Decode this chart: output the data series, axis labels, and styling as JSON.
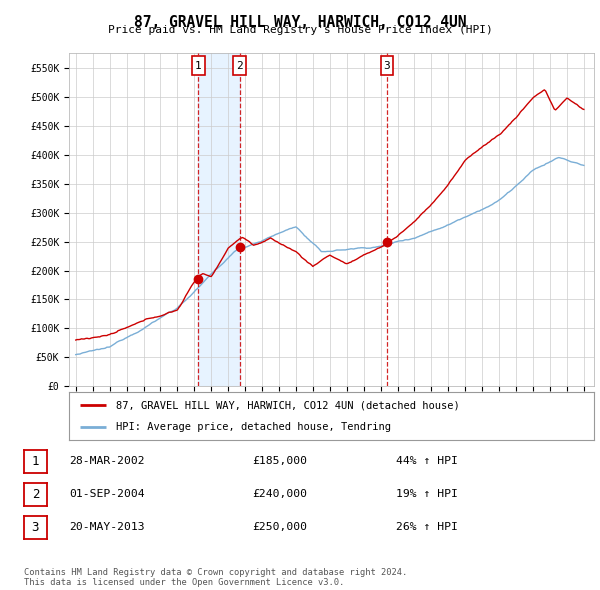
{
  "title": "87, GRAVEL HILL WAY, HARWICH, CO12 4UN",
  "subtitle": "Price paid vs. HM Land Registry's House Price Index (HPI)",
  "legend_line1": "87, GRAVEL HILL WAY, HARWICH, CO12 4UN (detached house)",
  "legend_line2": "HPI: Average price, detached house, Tendring",
  "table": [
    {
      "num": "1",
      "date": "28-MAR-2002",
      "price": "£185,000",
      "hpi": "44% ↑ HPI"
    },
    {
      "num": "2",
      "date": "01-SEP-2004",
      "price": "£240,000",
      "hpi": "19% ↑ HPI"
    },
    {
      "num": "3",
      "date": "20-MAY-2013",
      "price": "£250,000",
      "hpi": "26% ↑ HPI"
    }
  ],
  "footer": "Contains HM Land Registry data © Crown copyright and database right 2024.\nThis data is licensed under the Open Government Licence v3.0.",
  "red_line_color": "#cc0000",
  "blue_line_color": "#7aaed6",
  "shade_color": "#ddeeff",
  "vline_color": "#cc0000",
  "ylim": [
    0,
    575000
  ],
  "yticks": [
    0,
    50000,
    100000,
    150000,
    200000,
    250000,
    300000,
    350000,
    400000,
    450000,
    500000,
    550000
  ],
  "ytick_labels": [
    "£0",
    "£50K",
    "£100K",
    "£150K",
    "£200K",
    "£250K",
    "£300K",
    "£350K",
    "£400K",
    "£450K",
    "£500K",
    "£550K"
  ],
  "sale_dates": [
    2002.23,
    2004.67,
    2013.38
  ],
  "sale_prices": [
    185000,
    240000,
    250000
  ],
  "sale_labels": [
    "1",
    "2",
    "3"
  ],
  "background_color": "#ffffff",
  "grid_color": "#cccccc"
}
